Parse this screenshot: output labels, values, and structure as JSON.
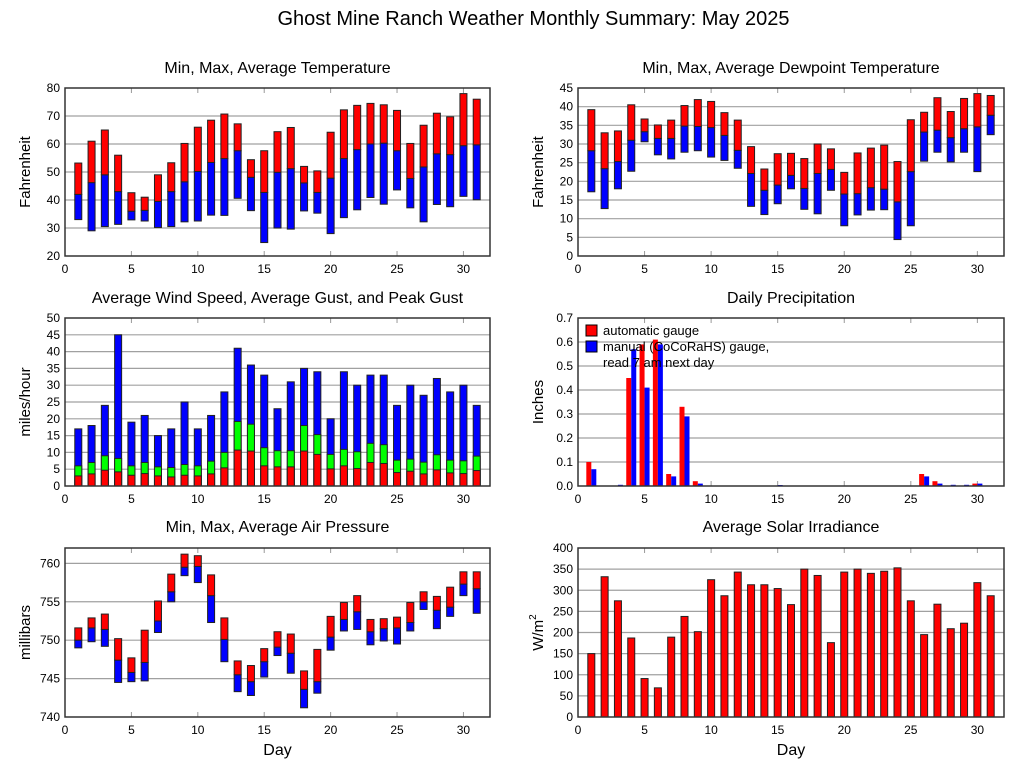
{
  "page_title": "Ghost Mine Ranch Weather Monthly Summary: May 2025",
  "colors": {
    "red": "#ff0000",
    "blue": "#0000ff",
    "green": "#00ff00",
    "grid": "#a0a0a0",
    "outline": "#222222"
  },
  "chart_data": [
    {
      "id": "temperature",
      "type": "bar",
      "subtype": "stacked-range",
      "title": "Min, Max, Average Temperature",
      "xlabel": "",
      "ylabel": "Fahrenheit",
      "xlim": [
        0,
        32
      ],
      "ylim": [
        20,
        80
      ],
      "xticks": [
        0,
        5,
        10,
        15,
        20,
        25,
        30
      ],
      "yticks": [
        20,
        30,
        40,
        50,
        60,
        70,
        80
      ],
      "grid": true,
      "x": [
        1,
        2,
        3,
        4,
        5,
        6,
        7,
        8,
        9,
        10,
        11,
        12,
        13,
        14,
        15,
        16,
        17,
        18,
        19,
        20,
        21,
        22,
        23,
        24,
        25,
        26,
        27,
        28,
        29,
        30,
        31
      ],
      "series": [
        {
          "name": "min",
          "values": [
            33,
            29,
            30.5,
            31.3,
            32.9,
            32.5,
            30.2,
            30.5,
            32.2,
            32.5,
            34.6,
            34.5,
            40.6,
            36.2,
            24.8,
            30,
            29.6,
            36.1,
            35.3,
            28,
            33.7,
            36.5,
            40.9,
            38.5,
            43.6,
            37.2,
            32.2,
            38.4,
            37.6,
            41.3,
            40.1
          ]
        },
        {
          "name": "average",
          "color": "blue",
          "values": [
            42,
            46.2,
            49,
            43,
            36,
            36.3,
            39.5,
            43,
            46.5,
            50.2,
            53.4,
            54.8,
            57.6,
            48.1,
            42.7,
            49.9,
            51.2,
            46.1,
            42.7,
            47.8,
            54.8,
            58,
            60,
            60.3,
            57.6,
            47.7,
            51.8,
            56.5,
            56.2,
            59.4,
            59.7
          ]
        },
        {
          "name": "max",
          "color": "red",
          "values": [
            53.2,
            61,
            65,
            56,
            42.6,
            41,
            49,
            53.3,
            60.2,
            66,
            68.5,
            70.7,
            67.2,
            54.4,
            57.6,
            64.4,
            65.9,
            52,
            50.4,
            64.2,
            72.2,
            73.8,
            74.5,
            74,
            72,
            60.2,
            66.7,
            71,
            69.7,
            78,
            76
          ]
        }
      ]
    },
    {
      "id": "dewpoint",
      "type": "bar",
      "subtype": "stacked-range",
      "title": "Min, Max, Average Dewpoint Temperature",
      "xlabel": "",
      "ylabel": "Fahrenheit",
      "xlim": [
        0,
        32
      ],
      "ylim": [
        0,
        45
      ],
      "xticks": [
        0,
        5,
        10,
        15,
        20,
        25,
        30
      ],
      "yticks": [
        0,
        5,
        10,
        15,
        20,
        25,
        30,
        35,
        40,
        45
      ],
      "grid": true,
      "x": [
        1,
        2,
        3,
        4,
        5,
        6,
        7,
        8,
        9,
        10,
        11,
        12,
        13,
        14,
        15,
        16,
        17,
        18,
        19,
        20,
        21,
        22,
        23,
        24,
        25,
        26,
        27,
        28,
        29,
        30,
        31
      ],
      "series": [
        {
          "name": "min",
          "values": [
            17.2,
            12.7,
            18,
            22.7,
            30.6,
            27.1,
            26,
            27.8,
            28.2,
            26.5,
            25.6,
            23.5,
            13.3,
            11.1,
            14,
            18,
            12.5,
            11.3,
            17.6,
            8.1,
            11,
            12.3,
            12.4,
            4.4,
            8.1,
            25.4,
            27.8,
            25.2,
            27.8,
            22.6,
            32.5
          ]
        },
        {
          "name": "average",
          "color": "blue",
          "values": [
            28.2,
            23.4,
            25.3,
            31,
            33.3,
            31.5,
            31.5,
            34.8,
            34.7,
            34.4,
            32.3,
            28.3,
            22.1,
            17.6,
            19,
            21.6,
            18.1,
            22.1,
            23.2,
            16.6,
            16.7,
            18.3,
            17.9,
            14.5,
            22.6,
            33.2,
            33.7,
            31.7,
            34.1,
            34.6,
            37.7
          ]
        },
        {
          "name": "max",
          "color": "red",
          "values": [
            39.2,
            33,
            33.5,
            40.5,
            36.7,
            35.1,
            36.4,
            40.3,
            41.9,
            41.4,
            38.4,
            36.4,
            29.3,
            23.3,
            27.4,
            27.5,
            26.1,
            30,
            28.7,
            22.4,
            27.6,
            28.9,
            29.7,
            25.3,
            36.5,
            38.5,
            42.4,
            38.7,
            42.2,
            43.5,
            43
          ]
        }
      ]
    },
    {
      "id": "wind",
      "type": "bar",
      "subtype": "overlaid",
      "title": "Average Wind Speed, Average Gust, and Peak Gust",
      "xlabel": "",
      "ylabel": "miles/hour",
      "xlim": [
        0,
        32
      ],
      "ylim": [
        0,
        50
      ],
      "xticks": [
        0,
        5,
        10,
        15,
        20,
        25,
        30
      ],
      "yticks": [
        0,
        5,
        10,
        15,
        20,
        25,
        30,
        35,
        40,
        45,
        50
      ],
      "grid": true,
      "x": [
        1,
        2,
        3,
        4,
        5,
        6,
        7,
        8,
        9,
        10,
        11,
        12,
        13,
        14,
        15,
        16,
        17,
        18,
        19,
        20,
        21,
        22,
        23,
        24,
        25,
        26,
        27,
        28,
        29,
        30,
        31
      ],
      "series": [
        {
          "name": "Peak Gust",
          "color": "blue",
          "values": [
            17,
            18,
            24,
            45,
            19,
            21,
            15,
            17,
            25,
            17,
            21,
            28,
            41,
            36,
            33,
            23,
            31,
            35,
            34,
            20,
            34,
            30,
            33,
            33,
            24,
            30,
            27,
            32,
            28,
            30,
            24
          ]
        },
        {
          "name": "Average Gust",
          "color": "green",
          "values": [
            6,
            7,
            9,
            8.2,
            6,
            7,
            5.7,
            5.5,
            6.4,
            6,
            7.4,
            10,
            19.2,
            18.4,
            11.4,
            10.5,
            10.5,
            18,
            15.3,
            9.4,
            10.9,
            10.2,
            12.7,
            12.3,
            7.7,
            8,
            7.1,
            9.3,
            7.7,
            7.5,
            8.9
          ]
        },
        {
          "name": "Average Wind Speed",
          "color": "red",
          "values": [
            3,
            3.6,
            4.7,
            4.2,
            3.2,
            3.7,
            3,
            2.7,
            3.2,
            3,
            3.6,
            5.4,
            10.7,
            10.4,
            6,
            5.7,
            5.7,
            10.4,
            9.4,
            5.1,
            6,
            5.2,
            7,
            6.7,
            4,
            4.4,
            3.6,
            4.8,
            3.9,
            3.7,
            4.6
          ]
        }
      ]
    },
    {
      "id": "precipitation",
      "type": "bar",
      "subtype": "grouped",
      "title": "Daily Precipitation",
      "xlabel": "",
      "ylabel": "Inches",
      "xlim": [
        0,
        32
      ],
      "ylim": [
        0,
        0.7
      ],
      "xticks": [
        0,
        5,
        10,
        15,
        20,
        25,
        30
      ],
      "yticks": [
        "0.0",
        "0.1",
        "0.2",
        "0.3",
        "0.4",
        "0.5",
        "0.6",
        "0.7"
      ],
      "grid": true,
      "legend": "top-left",
      "x": [
        1,
        2,
        3,
        4,
        5,
        6,
        7,
        8,
        9,
        10,
        11,
        12,
        13,
        14,
        15,
        16,
        17,
        18,
        19,
        20,
        21,
        22,
        23,
        24,
        25,
        26,
        27,
        28,
        29,
        30,
        31
      ],
      "series": [
        {
          "name": "automatic gauge",
          "color": "red",
          "values": [
            0.1,
            0,
            0,
            0.45,
            0.59,
            0.61,
            0.05,
            0.33,
            0.02,
            0,
            0,
            0,
            0,
            0,
            0,
            0,
            0,
            0,
            0,
            0,
            0,
            0,
            0,
            0,
            0,
            0.05,
            0.02,
            0,
            0,
            0.01,
            0
          ]
        },
        {
          "name": "manual (CoCoRaHS) gauge,",
          "name_line2": "read 7 am next day",
          "color": "blue",
          "values": [
            0.07,
            0,
            0.005,
            0.57,
            0.41,
            0.59,
            0.04,
            0.29,
            0.01,
            0,
            0,
            0,
            0,
            0,
            0.003,
            0,
            0,
            0,
            0,
            0,
            0,
            0,
            0,
            0,
            0,
            0.04,
            0.01,
            0.005,
            0.005,
            0.01,
            0
          ]
        }
      ]
    },
    {
      "id": "pressure",
      "type": "bar",
      "subtype": "stacked-range",
      "title": "Min, Max, Average Air Pressure",
      "xlabel": "Day",
      "ylabel": "millibars",
      "xlim": [
        0,
        32
      ],
      "ylim": [
        740,
        762
      ],
      "xticks": [
        0,
        5,
        10,
        15,
        20,
        25,
        30
      ],
      "yticks": [
        740,
        745,
        750,
        755,
        760
      ],
      "grid": true,
      "x": [
        1,
        2,
        3,
        4,
        5,
        6,
        7,
        8,
        9,
        10,
        11,
        12,
        13,
        14,
        15,
        16,
        17,
        18,
        19,
        20,
        21,
        22,
        23,
        24,
        25,
        26,
        27,
        28,
        29,
        30,
        31
      ],
      "series": [
        {
          "name": "min",
          "values": [
            749,
            749.8,
            749.2,
            744.5,
            744.6,
            744.7,
            751,
            755,
            758.4,
            757.5,
            752.3,
            747.2,
            743.3,
            742.8,
            745.2,
            748,
            745.7,
            741.2,
            743.1,
            748.7,
            751.2,
            751.4,
            749.4,
            749.9,
            749.5,
            751.2,
            754,
            751.5,
            753.1,
            755.8,
            753.5
          ]
        },
        {
          "name": "average",
          "color": "blue",
          "values": [
            750,
            751.6,
            751.4,
            747.4,
            745.8,
            747.1,
            752.5,
            756.3,
            759.5,
            759.6,
            755.8,
            750.1,
            745.5,
            744.6,
            747.2,
            749.1,
            748.3,
            743.6,
            744.6,
            750.4,
            752.7,
            753.7,
            751.1,
            751.5,
            751.6,
            752.3,
            755,
            753.9,
            754.3,
            757.3,
            756.7
          ]
        },
        {
          "name": "max",
          "color": "red",
          "values": [
            751.6,
            752.9,
            753.4,
            750.2,
            747.7,
            751.3,
            755.1,
            758.6,
            761.2,
            761,
            758.5,
            752.9,
            747.3,
            746.7,
            748.9,
            751.1,
            750.8,
            746,
            748.8,
            753.1,
            754.9,
            755.8,
            752.7,
            752.8,
            753,
            754.9,
            756.3,
            755.7,
            756.9,
            758.9,
            758.9
          ]
        }
      ]
    },
    {
      "id": "solar",
      "type": "bar",
      "title": "Average Solar Irradiance",
      "xlabel": "Day",
      "ylabel": "W/m",
      "ylabel_superscript": "2",
      "xlim": [
        0,
        32
      ],
      "ylim": [
        0,
        400
      ],
      "xticks": [
        0,
        5,
        10,
        15,
        20,
        25,
        30
      ],
      "yticks": [
        0,
        50,
        100,
        150,
        200,
        250,
        300,
        350,
        400
      ],
      "grid": true,
      "x": [
        1,
        2,
        3,
        4,
        5,
        6,
        7,
        8,
        9,
        10,
        11,
        12,
        13,
        14,
        15,
        16,
        17,
        18,
        19,
        20,
        21,
        22,
        23,
        24,
        25,
        26,
        27,
        28,
        29,
        30,
        31
      ],
      "series": [
        {
          "name": "Average Solar Irradiance",
          "color": "red",
          "values": [
            150,
            332,
            275,
            187,
            91,
            69,
            189,
            238,
            202,
            325,
            287,
            343,
            313,
            313,
            304,
            266,
            350,
            335,
            176,
            343,
            350,
            340,
            345,
            353,
            275,
            195,
            267,
            209,
            222,
            318,
            287
          ]
        }
      ]
    }
  ]
}
